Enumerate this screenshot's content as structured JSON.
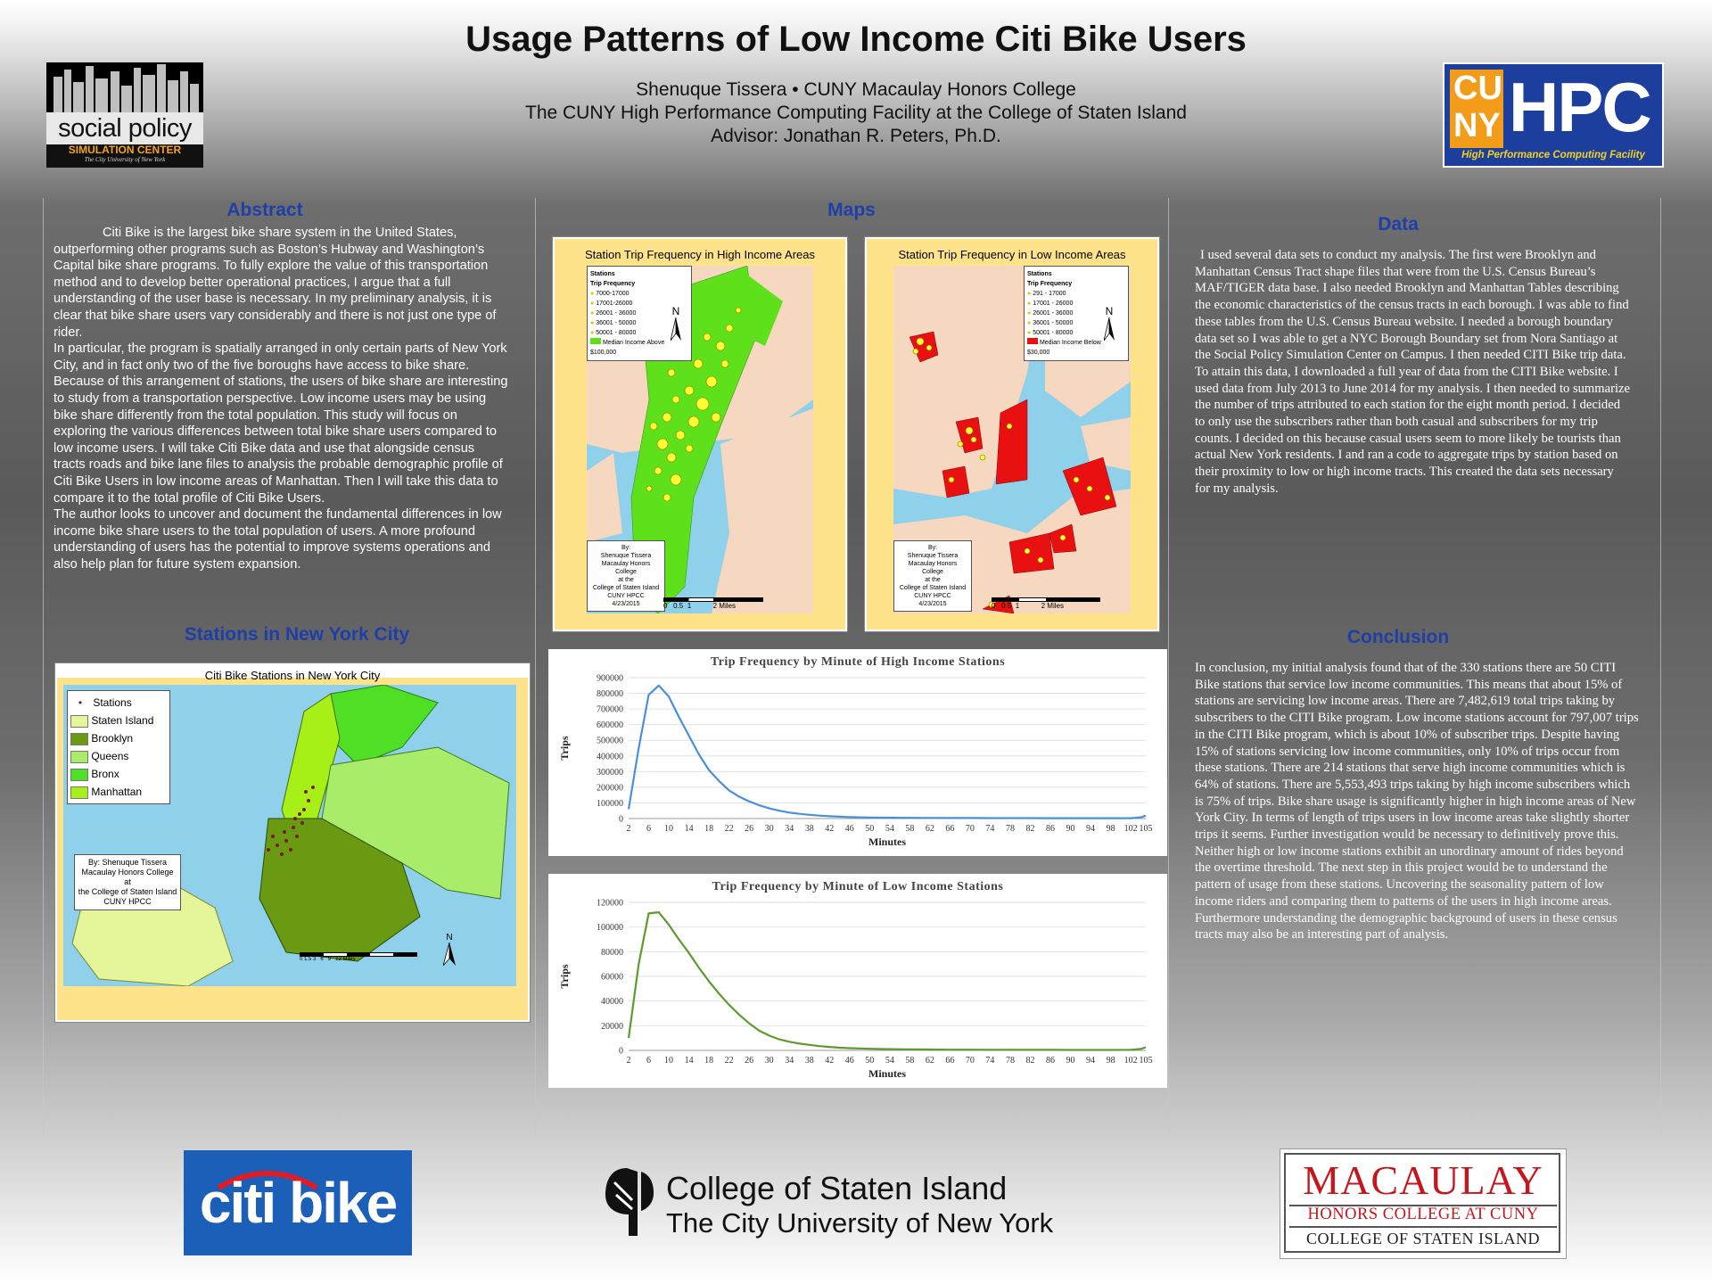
{
  "header": {
    "title": "Usage Patterns of Low Income Citi Bike Users",
    "author_line": "Shenuque Tissera •  CUNY Macaulay Honors College",
    "facility_line": "The CUNY High Performance Computing Facility at the College of Staten Island",
    "advisor_line": "Advisor: Jonathan R. Peters, Ph.D."
  },
  "logos": {
    "social_policy": {
      "line1": "social policy",
      "line2": "SIMULATION CENTER",
      "line3": "The City University of New York"
    },
    "hpc": {
      "cu": "CU",
      "ny": "NY",
      "hpc": "HPC",
      "sub": "High Performance Computing Facility"
    },
    "citibike": {
      "text": "citi bike"
    },
    "csi": {
      "line1": "College of Staten Island",
      "line2": "The City University of New York"
    },
    "macaulay": {
      "line1": "MACAULAY",
      "line2": "HONORS COLLEGE AT CUNY",
      "line3": "COLLEGE OF STATEN ISLAND"
    }
  },
  "abstract": {
    "heading": "Abstract",
    "p1": "Citi Bike is the largest bike share system in the United States, outperforming other programs such as Boston’s Hubway and Washington’s Capital bike share programs. To fully explore the value of this transportation method and to develop better operational practices, I argue that a full understanding of the user base is necessary.  In my preliminary analysis, it is clear that bike share users vary considerably and there is not just one type of rider.",
    "p2": "In particular, the program is spatially arranged in only certain parts of New York City, and in fact only two of the five boroughs have access to bike share. Because of this arrangement of stations, the users of bike share are interesting to study from a transportation perspective. Low income users may be using bike share differently from the total population. This study will focus on exploring the various differences between total bike share users compared to low income users.  I will take Citi Bike data and use that alongside census tracts roads and bike lane files to analysis the probable demographic profile of Citi Bike Users in low income areas of Manhattan.  Then I will take this data to compare it to the total profile of Citi Bike Users.",
    "p3": "The author looks to uncover and document the fundamental differences in low income bike share users to the total population of users.  A more profound understanding of users has the potential to improve systems operations and also help plan for future system expansion."
  },
  "stations": {
    "heading": "Stations in New York City",
    "map_title": "Citi Bike Stations in New York City",
    "legend": [
      "Stations",
      "Staten Island",
      "Brooklyn",
      "Queens",
      "Bronx",
      "Manhattan"
    ],
    "legend_colors": [
      "#7a1b10",
      "#e4f59a",
      "#6a9a12",
      "#a8ec6a",
      "#4fe026",
      "#a6f018"
    ],
    "credit": [
      "By: Shenuque Tissera",
      "Macaulay Honors College",
      "at",
      "the College of Staten Island",
      "CUNY HPCC"
    ],
    "scale": [
      "0",
      "1.5",
      "3",
      "6",
      "9",
      "12",
      "Miles"
    ],
    "north": "N"
  },
  "maps": {
    "heading": "Maps",
    "high": {
      "title": "Station Trip Frequency in High Income Areas",
      "legend_title": "Stations",
      "legend_sub": "Trip Frequency",
      "ranges": [
        "7000-17000",
        "17001-26000",
        "26001 - 36000",
        "36001 - 50000",
        "50001 - 80000"
      ],
      "area_label": "Median Income Above $100,000",
      "credit": [
        "By:",
        "Shenuque Tissera",
        "Macaulay Honors College",
        "at the",
        "College of Staten Island",
        "CUNY HPCC",
        "4/23/2015"
      ],
      "scale": [
        "0",
        "0.5",
        "1",
        "2",
        "Miles"
      ],
      "north": "N"
    },
    "low": {
      "title": "Station Trip Frequency in Low Income Areas",
      "legend_title": "Stations",
      "legend_sub": "Trip Frequency",
      "ranges": [
        "291 - 17000",
        "17001 - 26000",
        "26001 - 36000",
        "36001 - 50000",
        "50001 - 80000"
      ],
      "area_label": "Median Income Below $30,000",
      "credit": [
        "By:",
        "Shenuque Tissera",
        "Macaulay Honors College",
        "at the",
        "College of Staten Island",
        "CUNY HPCC",
        "4/23/2015"
      ],
      "scale": [
        "0",
        "0.5",
        "1",
        "2",
        "Miles"
      ],
      "north": "N"
    }
  },
  "data_section": {
    "heading": "Data",
    "text": "I used several data sets to conduct my analysis. The first were Brooklyn and Manhattan Census Tract shape files that were from the U.S. Census Bureau’s MAF/TIGER data base. I also needed Brooklyn and Manhattan Tables describing the economic characteristics of the census tracts in each borough. I was able to find these tables from the U.S. Census Bureau website. I needed a borough boundary data set so I was able to get a NYC Borough Boundary set from Nora Santiago at the Social Policy Simulation Center on Campus. I then needed CITI Bike trip data. To attain this data, I downloaded a full year of data from the CITI Bike website. I used data from July 2013 to June 2014 for my analysis. I then needed to summarize the number of trips attributed to each station for the eight month period. I decided to only use the subscribers rather than both casual and subscribers for my trip counts. I decided on this because casual users seem to more likely be tourists than actual New York residents. I and ran a code to aggregate trips by station based on their proximity to  low or high income tracts. This created the data sets necessary for my analysis."
  },
  "conclusion": {
    "heading": "Conclusion",
    "text": "In conclusion, my initial analysis found that of the 330 stations there are 50 CITI Bike stations that service low income communities. This means that about 15% of stations are servicing low income areas. There are 7,482,619 total trips taking by subscribers to the CITI Bike program. Low income stations account for 797,007 trips in the CITI Bike program, which is about 10% of subscriber trips. Despite having 15% of stations servicing low income communities, only 10% of trips occur from these stations. There are 214 stations that serve high income communities which is 64% of stations. There are 5,553,493 trips taking by high income subscribers which is 75% of trips. Bike share usage is significantly higher in high income areas of New York City. In terms of length of trips users in low income areas take slightly shorter trips it seems. Further investigation would be necessary to definitively prove this. Neither high or low income stations exhibit an unordinary amount of rides beyond the overtime threshold. The next step in this project would be to understand the pattern of usage from these stations. Uncovering the seasonality pattern of low income riders and comparing them to patterns of the users in high income areas. Furthermore understanding the demographic background of users in these census tracts may also be an interesting part of analysis."
  },
  "colors": {
    "heading": "#1f3fa8",
    "high_line": "#4a90d9",
    "low_line": "#5e9a2e",
    "green_area": "#5ee01a",
    "red_area": "#e81010",
    "station": "#ffff33"
  },
  "chart_data": [
    {
      "type": "line",
      "title": "Trip Frequency by Minute of High Income Stations",
      "xlabel": "Minutes",
      "ylabel": "Trips",
      "ylim": [
        0,
        900000
      ],
      "yticks": [
        "0",
        "100000",
        "200000",
        "300000",
        "400000",
        "500000",
        "600000",
        "700000",
        "800000",
        "900000"
      ],
      "xticks": [
        "2",
        "6",
        "10",
        "14",
        "18",
        "22",
        "26",
        "30",
        "34",
        "38",
        "42",
        "46",
        "50",
        "54",
        "58",
        "62",
        "66",
        "70",
        "74",
        "78",
        "82",
        "86",
        "90",
        "94",
        "98",
        "102",
        "105"
      ],
      "series": [
        {
          "color": "#4a90d9",
          "x": [
            2,
            4,
            6,
            8,
            10,
            12,
            14,
            16,
            18,
            20,
            22,
            24,
            26,
            28,
            30,
            32,
            34,
            36,
            38,
            40,
            42,
            44,
            46,
            50,
            54,
            58,
            62,
            66,
            70,
            74,
            78,
            82,
            86,
            90,
            94,
            98,
            102,
            104,
            105
          ],
          "values": [
            60000,
            450000,
            790000,
            850000,
            780000,
            650000,
            530000,
            410000,
            310000,
            240000,
            180000,
            140000,
            110000,
            85000,
            65000,
            50000,
            38000,
            30000,
            24000,
            19000,
            15000,
            12000,
            9500,
            7000,
            5500,
            4500,
            4000,
            3500,
            3200,
            3000,
            2800,
            2600,
            2500,
            2400,
            2300,
            2300,
            2500,
            8000,
            18000
          ]
        }
      ]
    },
    {
      "type": "line",
      "title": "Trip Frequency by Minute of Low Income Stations",
      "xlabel": "Minutes",
      "ylabel": "Trips",
      "ylim": [
        0,
        120000
      ],
      "yticks": [
        "0",
        "20000",
        "40000",
        "60000",
        "80000",
        "100000",
        "120000"
      ],
      "xticks": [
        "2",
        "6",
        "10",
        "14",
        "18",
        "22",
        "26",
        "30",
        "34",
        "38",
        "42",
        "46",
        "50",
        "54",
        "58",
        "62",
        "66",
        "70",
        "74",
        "78",
        "82",
        "86",
        "90",
        "94",
        "98",
        "102",
        "105"
      ],
      "series": [
        {
          "color": "#5e9a2e",
          "x": [
            2,
            4,
            6,
            8,
            10,
            12,
            14,
            16,
            18,
            20,
            22,
            24,
            26,
            28,
            30,
            32,
            34,
            36,
            38,
            40,
            42,
            44,
            46,
            50,
            54,
            58,
            62,
            66,
            70,
            74,
            78,
            82,
            86,
            90,
            94,
            98,
            102,
            104,
            105
          ],
          "values": [
            10000,
            70000,
            111000,
            112000,
            102000,
            90000,
            79000,
            67000,
            56000,
            46000,
            37000,
            29000,
            22000,
            16000,
            12000,
            9000,
            7000,
            5500,
            4500,
            3500,
            2800,
            2200,
            1800,
            1300,
            1000,
            800,
            700,
            600,
            550,
            500,
            450,
            420,
            400,
            380,
            360,
            350,
            400,
            1200,
            2500
          ]
        }
      ]
    }
  ]
}
